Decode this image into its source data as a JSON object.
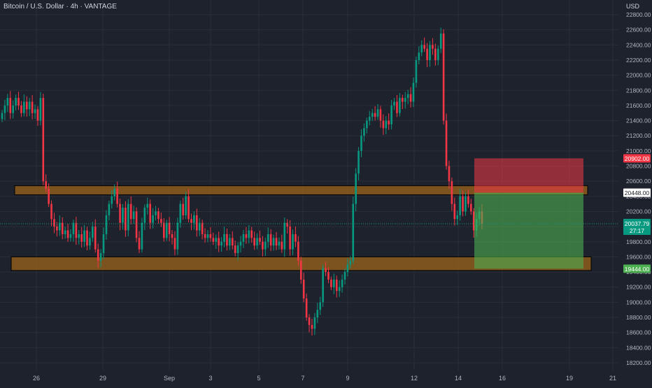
{
  "header": {
    "symbol": "Bitcoin / U.S. Dollar",
    "interval": "4h",
    "exchange": "VANTAGE",
    "currency": "USD"
  },
  "chart_data": {
    "type": "candlestick",
    "ylim": [
      18000,
      22900
    ],
    "y_ticks": [
      18200,
      18400,
      18600,
      18800,
      19000,
      19200,
      19400,
      19600,
      19800,
      20000,
      20200,
      20400,
      20600,
      20800,
      21000,
      21200,
      21400,
      21600,
      21800,
      22000,
      22200,
      22400,
      22600,
      22800
    ],
    "x_ticks": [
      "26",
      "29",
      "Sep",
      "3",
      "5",
      "7",
      "9",
      "12",
      "14",
      "16",
      "19",
      "21"
    ],
    "price_labels": [
      {
        "value": "20902.00",
        "color": "#f23645"
      },
      {
        "value": "20448.00",
        "color": "#ffffff"
      },
      {
        "value": "20037.79",
        "color": "#089981"
      },
      {
        "value": "27:17",
        "color": "#089981"
      },
      {
        "value": "19444.00",
        "color": "#4caf50"
      }
    ],
    "last_price": 20037.79,
    "zones": [
      {
        "from": 20420,
        "to": 20540,
        "color": "#8d5a1c"
      },
      {
        "from": 19420,
        "to": 19600,
        "color": "#8d5a1c"
      }
    ],
    "position": {
      "direction": "short",
      "entry": 20448.0,
      "stop": 20902.0,
      "target": 19444.0,
      "stop_color": "#f23645",
      "target_color": "#4caf50"
    },
    "colors": {
      "up": "#089981",
      "down": "#f23645",
      "background": "#1e222d"
    },
    "closes": [
      21500,
      21600,
      21700,
      21500,
      21600,
      21700,
      21600,
      21500,
      21650,
      21550,
      21650,
      21500,
      21550,
      21400,
      21700,
      20600,
      20500,
      20300,
      20100,
      20000,
      19950,
      20050,
      19900,
      19950,
      19850,
      19900,
      20050,
      19850,
      19900,
      19800,
      19950,
      19750,
      19850,
      20000,
      19700,
      19550,
      19650,
      19900,
      20150,
      20300,
      20400,
      20500,
      20300,
      20050,
      20250,
      19950,
      20300,
      20100,
      20200,
      19850,
      19700,
      20050,
      20250,
      20300,
      20050,
      20150,
      20200,
      20100,
      20050,
      19850,
      20050,
      19900,
      19850,
      19700,
      20050,
      20300,
      20150,
      20400,
      20100,
      20050,
      20150,
      19950,
      20050,
      19900,
      19850,
      19900,
      19850,
      19800,
      19850,
      19750,
      19800,
      19900,
      19750,
      19850,
      19750,
      19650,
      19750,
      19800,
      19900,
      19850,
      19950,
      19850,
      19750,
      19850,
      19800,
      19700,
      19800,
      19900,
      19750,
      19850,
      19750,
      19800,
      19700,
      20050,
      20000,
      19700,
      19900,
      19800,
      19550,
      19300,
      19050,
      18800,
      18700,
      18650,
      18800,
      18900,
      19000,
      19450,
      19400,
      19300,
      19200,
      19300,
      19150,
      19200,
      19300,
      19400,
      19500,
      19550,
      20300,
      20700,
      21000,
      21200,
      21300,
      21400,
      21450,
      21500,
      21450,
      21550,
      21400,
      21300,
      21400,
      21350,
      21600,
      21650,
      21500,
      21700,
      21650,
      21700,
      21750,
      21650,
      21900,
      22200,
      22300,
      22400,
      22350,
      22200,
      22400,
      22350,
      22200,
      22350,
      22550,
      21400,
      20800,
      20600,
      20300,
      20100,
      20150,
      20400,
      20200,
      20400,
      20300,
      20200,
      19950,
      20100,
      20200,
      20037.79
    ]
  }
}
